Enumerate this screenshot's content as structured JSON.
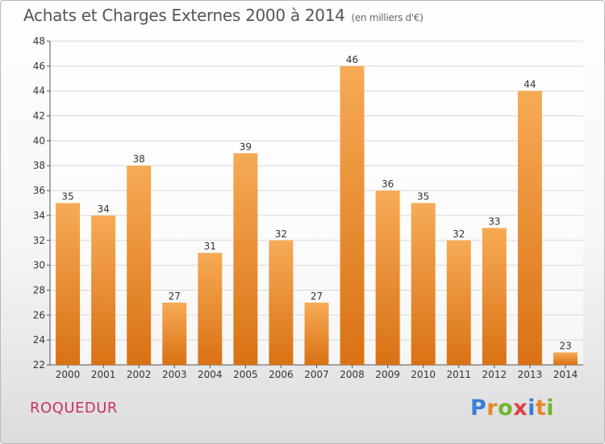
{
  "title": "Achats et Charges Externes 2000 à 2014",
  "subtitle": "(en milliers d'€)",
  "location": "ROQUEDUR",
  "brand": {
    "letters": [
      "P",
      "r",
      "o",
      "x",
      "i",
      "t",
      "i"
    ],
    "colors": [
      "#3a7fd5",
      "#e8862a",
      "#6fb52c",
      "#e04040",
      "#3a7fd5",
      "#e8862a",
      "#6fb52c"
    ]
  },
  "colors": {
    "bar": "#f09a3e",
    "bar_top": "#f7aa55",
    "bar_bottom": "#d97214",
    "axis_text": "#333333",
    "grid": "#d8d8d8"
  },
  "chart_data": {
    "type": "bar",
    "title": "Achats et Charges Externes 2000 à 2014",
    "subtitle": "(en milliers d'€)",
    "categories": [
      "2000",
      "2001",
      "2002",
      "2003",
      "2004",
      "2005",
      "2006",
      "2007",
      "2008",
      "2009",
      "2010",
      "2011",
      "2012",
      "2013",
      "2014"
    ],
    "values": [
      35,
      34,
      38,
      27,
      31,
      39,
      32,
      27,
      46,
      36,
      35,
      32,
      33,
      44,
      23
    ],
    "ylim": [
      22,
      48
    ],
    "yticks": [
      22,
      24,
      26,
      28,
      30,
      32,
      34,
      36,
      38,
      40,
      42,
      44,
      46,
      48
    ],
    "grid": true,
    "data_labels": true,
    "xlabel": "",
    "ylabel": ""
  }
}
